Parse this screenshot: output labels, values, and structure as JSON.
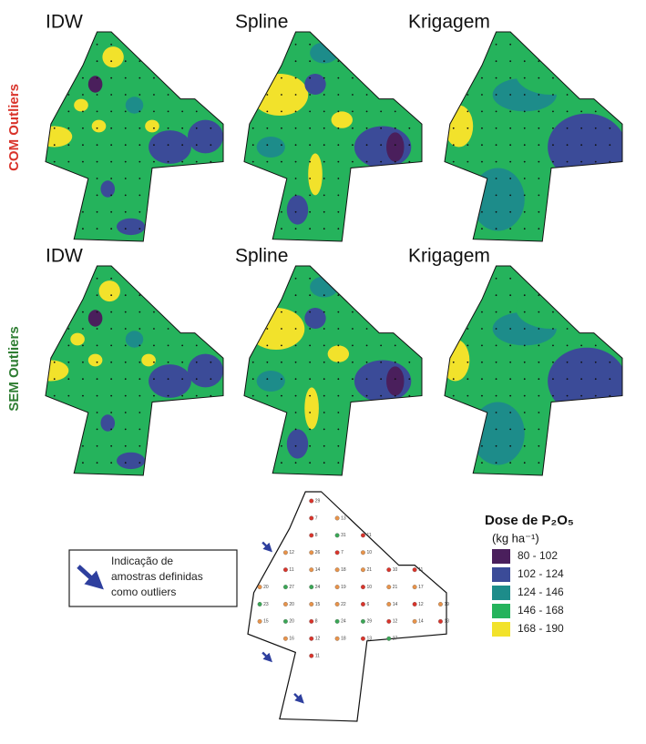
{
  "rows": [
    {
      "label": "COM Outliers",
      "color": "#d9342b",
      "panels": [
        "IDW",
        "Spline",
        "Krigagem"
      ]
    },
    {
      "label": "SEM Outliers",
      "color": "#2e7d32",
      "panels": [
        "IDW",
        "Spline",
        "Krigagem"
      ]
    }
  ],
  "legend": {
    "title": "Dose de P₂O₅",
    "unit": "(kg ha⁻¹)",
    "items": [
      {
        "label": "80 - 102",
        "color": "#4a1f5c"
      },
      {
        "label": "102 - 124",
        "color": "#3b4b98"
      },
      {
        "label": "124 - 146",
        "color": "#1d8c8a"
      },
      {
        "label": "146 - 168",
        "color": "#25b35c"
      },
      {
        "label": "168 - 190",
        "color": "#f2e22b"
      }
    ]
  },
  "note": {
    "lines": [
      "Indicação de",
      "amostras definidas",
      "como outliers"
    ]
  },
  "samples": {
    "labels": [
      "29",
      "7",
      "13",
      "8",
      "31",
      "11",
      "12",
      "26",
      "7",
      "10",
      "11",
      "14",
      "18",
      "21",
      "10",
      "11",
      "20",
      "27",
      "24",
      "19",
      "10",
      "21",
      "17",
      "23",
      "20",
      "15",
      "22",
      "6",
      "14",
      "12",
      "19",
      "15",
      "20",
      "8",
      "24",
      "29",
      "12",
      "14",
      "13",
      "16",
      "12",
      "18",
      "13",
      "27",
      "11"
    ],
    "colors": [
      "#d9342b",
      "#d9342b",
      "#e8934a",
      "#d9342b",
      "#3aa655",
      "#d9342b",
      "#e8934a",
      "#e8934a",
      "#d9342b",
      "#e8934a",
      "#d9342b",
      "#e8934a",
      "#e8934a",
      "#e8934a",
      "#d9342b",
      "#d9342b",
      "#e8934a",
      "#3aa655",
      "#3aa655",
      "#e8934a",
      "#d9342b",
      "#e8934a",
      "#e8934a",
      "#3aa655",
      "#e8934a",
      "#e8934a",
      "#e8934a",
      "#d9342b",
      "#e8934a",
      "#d9342b",
      "#e8934a",
      "#e8934a",
      "#3aa655",
      "#d9342b",
      "#3aa655",
      "#3aa655",
      "#d9342b",
      "#e8934a",
      "#d9342b",
      "#e8934a",
      "#d9342b",
      "#e8934a",
      "#d9342b",
      "#3aa655",
      "#d9342b"
    ]
  }
}
